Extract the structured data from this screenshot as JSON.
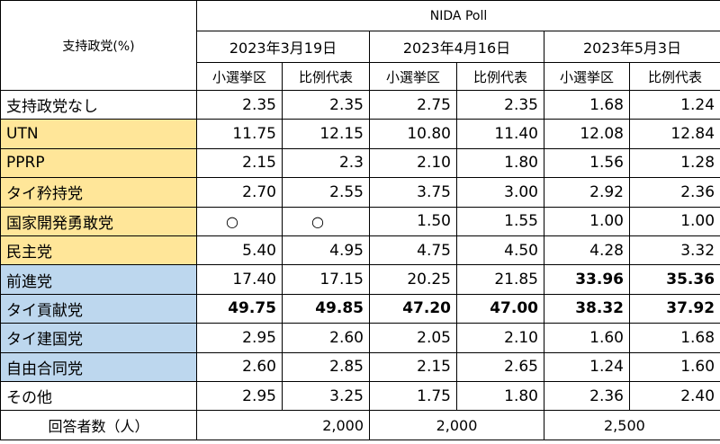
{
  "header": {
    "corner_label": "支持政党(%)",
    "poll_name": "NIDA Poll",
    "dates": [
      "2023年3月19日",
      "2023年4月16日",
      "2023年5月3日"
    ],
    "sub_cols": [
      "小選挙区",
      "比例代表",
      "小選挙区",
      "比例代表",
      "小選挙区",
      "比例代表"
    ]
  },
  "rows": [
    {
      "party": "支持政党なし",
      "values": [
        "2.35",
        "2.35",
        "2.75",
        "2.35",
        "1.68",
        "1.24"
      ]
    },
    {
      "party": "UTN",
      "values": [
        "11.75",
        "12.15",
        "10.80",
        "11.40",
        "12.08",
        "12.84"
      ]
    },
    {
      "party": "PPRP",
      "values": [
        "2.15",
        "2.3",
        "2.10",
        "1.80",
        "1.56",
        "1.28"
      ]
    },
    {
      "party": "タイ矜持党",
      "values": [
        "2.70",
        "2.55",
        "3.75",
        "3.00",
        "2.92",
        "2.36"
      ]
    },
    {
      "party": "国家開発勇敢党",
      "values": [
        "○",
        "○",
        "1.50",
        "1.55",
        "1.00",
        "1.00"
      ]
    },
    {
      "party": "民主党",
      "values": [
        "5.40",
        "4.95",
        "4.75",
        "4.50",
        "4.28",
        "3.32"
      ]
    },
    {
      "party": "前進党",
      "values": [
        "17.40",
        "17.15",
        "20.25",
        "21.85",
        "33.96",
        "35.36"
      ]
    },
    {
      "party": "タイ貢献党",
      "values": [
        "49.75",
        "49.85",
        "47.20",
        "47.00",
        "38.32",
        "37.92"
      ]
    },
    {
      "party": "タイ建国党",
      "values": [
        "2.95",
        "2.60",
        "2.05",
        "2.10",
        "1.60",
        "1.68"
      ]
    },
    {
      "party": "自由合同党",
      "values": [
        "2.60",
        "2.85",
        "2.15",
        "2.65",
        "1.24",
        "1.60"
      ]
    },
    {
      "party": "その他",
      "values": [
        "2.95",
        "3.25",
        "1.75",
        "1.80",
        "2.36",
        "2.40"
      ]
    }
  ],
  "footer": {
    "label": "回答者数（人）",
    "counts": [
      "2,000",
      "2,000",
      "2,500"
    ]
  },
  "colors": {
    "government_group": "#ffe699",
    "opposition_group": "#bdd7ee"
  }
}
